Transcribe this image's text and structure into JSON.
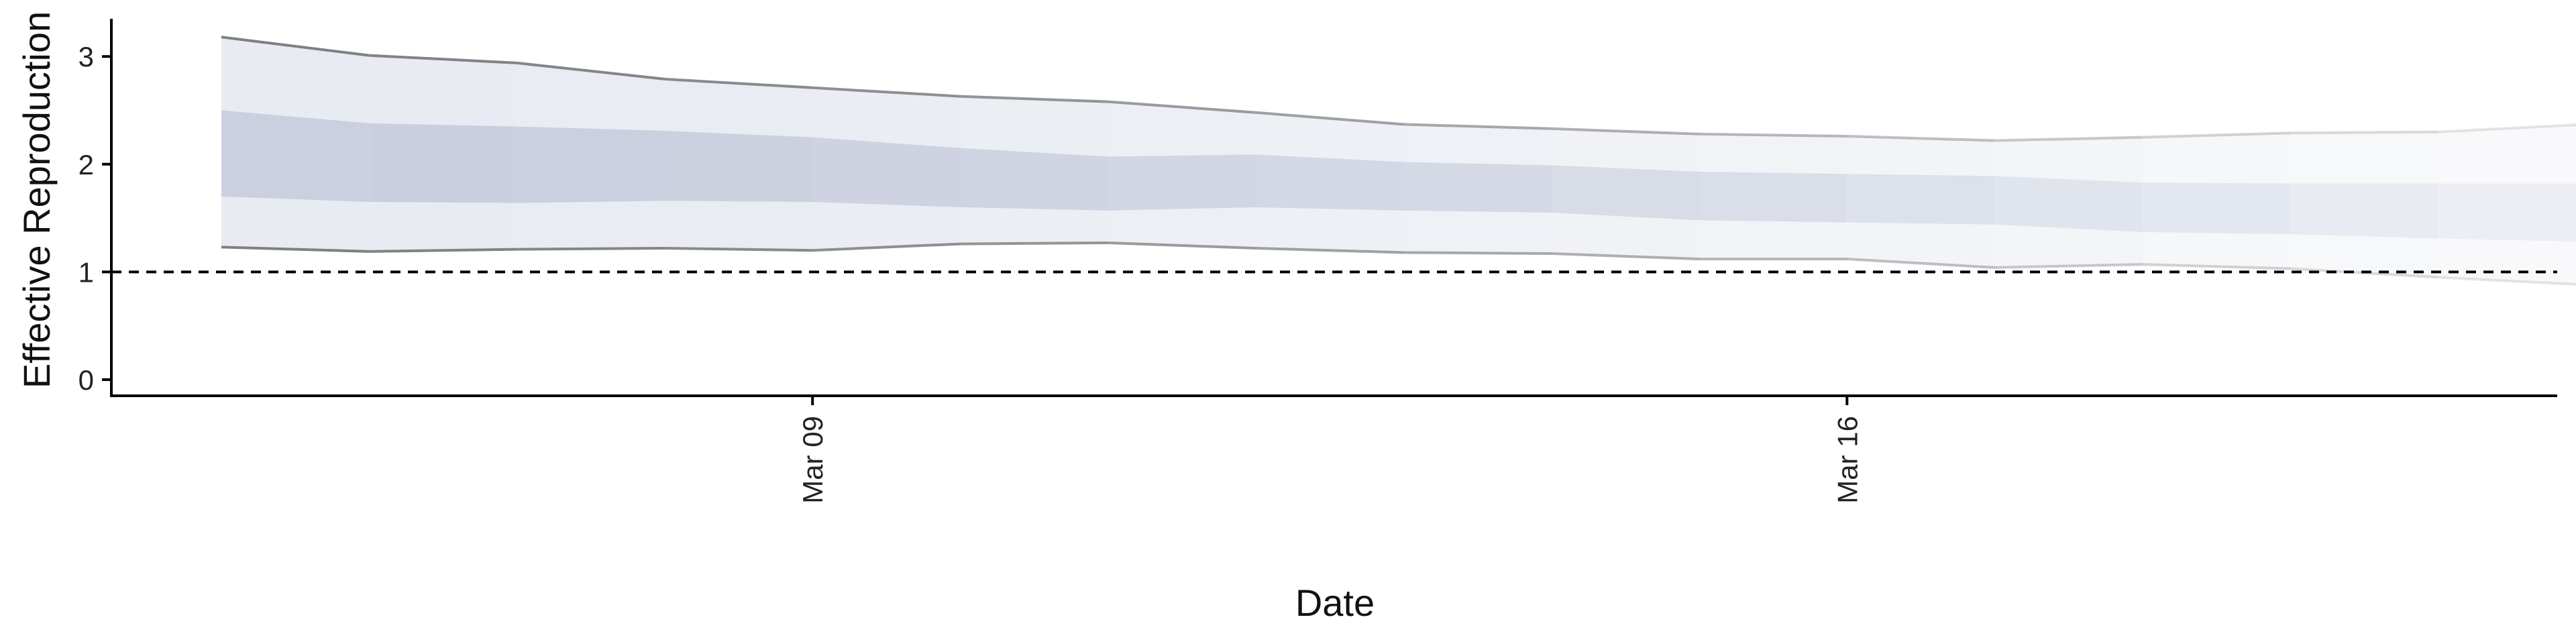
{
  "chart_data": {
    "type": "area",
    "title": "",
    "xlabel": "Date",
    "ylabel": "Effective Reproduction no",
    "x": [
      "2020-03-05",
      "2020-03-06",
      "2020-03-07",
      "2020-03-08",
      "2020-03-09",
      "2020-03-10",
      "2020-03-11",
      "2020-03-12",
      "2020-03-13",
      "2020-03-14",
      "2020-03-15",
      "2020-03-16",
      "2020-03-17",
      "2020-03-18",
      "2020-03-19",
      "2020-03-20",
      "2020-03-21"
    ],
    "x_ticks": [
      {
        "value": "2020-03-09",
        "label": "Mar 09"
      },
      {
        "value": "2020-03-16",
        "label": "Mar 16"
      }
    ],
    "y_ticks": [
      0,
      1,
      2,
      3
    ],
    "ylim": [
      -0.15,
      3.35
    ],
    "grid": false,
    "legend": "none",
    "reference_line": {
      "y": 1,
      "style": "dashed",
      "color": "#000000"
    },
    "series": [
      {
        "upper90": [
          3.18,
          3.01,
          2.94,
          2.79,
          2.71,
          2.63,
          2.58,
          2.48,
          2.37,
          2.33,
          2.28,
          2.26,
          2.22,
          2.25,
          2.29,
          2.3,
          2.37
        ],
        "upper50": [
          2.5,
          2.38,
          2.35,
          2.31,
          2.25,
          2.15,
          2.07,
          2.09,
          2.02,
          1.99,
          1.93,
          1.91,
          1.89,
          1.83,
          1.82,
          1.82,
          1.82
        ],
        "lower50": [
          1.7,
          1.65,
          1.64,
          1.66,
          1.65,
          1.6,
          1.57,
          1.6,
          1.57,
          1.55,
          1.48,
          1.46,
          1.44,
          1.37,
          1.35,
          1.31,
          1.28
        ],
        "lower90": [
          1.23,
          1.19,
          1.21,
          1.22,
          1.2,
          1.26,
          1.27,
          1.22,
          1.18,
          1.17,
          1.12,
          1.12,
          1.04,
          1.07,
          1.03,
          0.95,
          0.88
        ]
      }
    ]
  },
  "colors": {
    "outer_band": "#e2e6ee",
    "inner_band": "#c3c9db",
    "bound_line": "#7f7f84",
    "axis": "#000000",
    "text": "#222222"
  }
}
